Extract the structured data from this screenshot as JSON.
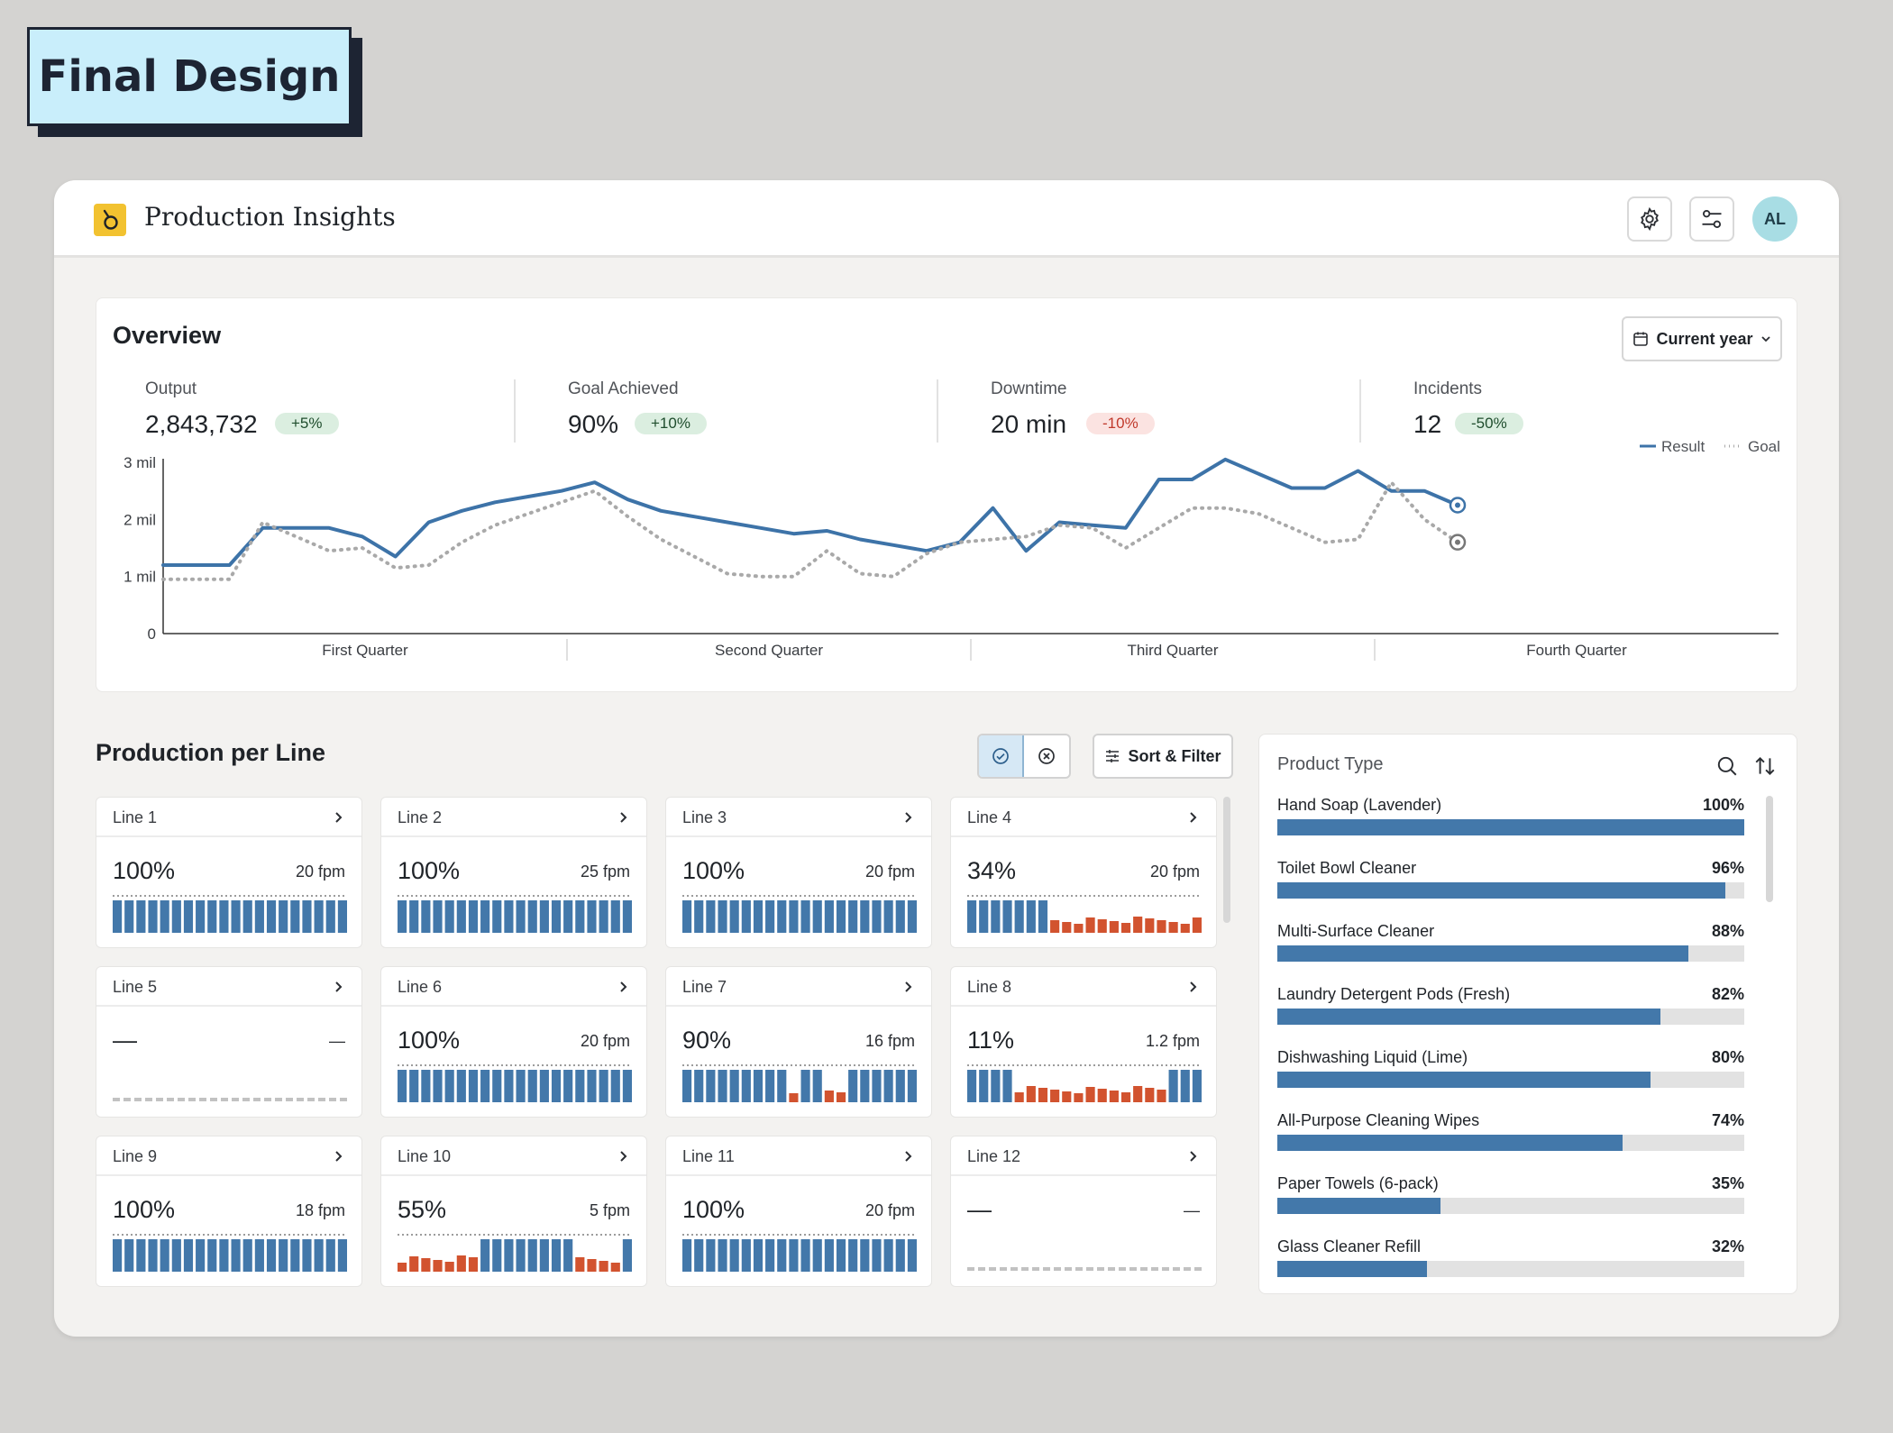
{
  "tag": {
    "label": "Final Design"
  },
  "header": {
    "title": "Production Insights",
    "avatar_initials": "AL"
  },
  "overview": {
    "title": "Overview",
    "range_label": "Current year",
    "kpis": [
      {
        "label": "Output",
        "value": "2,843,732",
        "delta": "+5%",
        "trend": "pos"
      },
      {
        "label": "Goal Achieved",
        "value": "90%",
        "delta": "+10%",
        "trend": "pos"
      },
      {
        "label": "Downtime",
        "value": "20 min",
        "delta": "-10%",
        "trend": "neg"
      },
      {
        "label": "Incidents",
        "value": "12",
        "delta": "-50%",
        "trend": "pos"
      }
    ]
  },
  "chart_data": {
    "type": "line",
    "title": "",
    "xlabel": "",
    "ylabel": "",
    "ylim": [
      0,
      3
    ],
    "yticks": [
      "0",
      "1 mil",
      "2 mil",
      "3 mil"
    ],
    "quarters": [
      "First Quarter",
      "Second Quarter",
      "Third Quarter",
      "Fourth Quarter"
    ],
    "legend_position": "top-right",
    "series": [
      {
        "name": "Result",
        "color": "#3d73a8",
        "style": "solid",
        "values": [
          1.2,
          1.2,
          1.2,
          1.85,
          1.85,
          1.85,
          1.7,
          1.35,
          1.95,
          2.15,
          2.3,
          2.4,
          2.5,
          2.65,
          2.35,
          2.15,
          2.05,
          1.95,
          1.85,
          1.75,
          1.8,
          1.65,
          1.55,
          1.45,
          1.6,
          2.2,
          1.45,
          1.95,
          1.9,
          1.85,
          2.7,
          2.7,
          3.05,
          2.8,
          2.55,
          2.55,
          2.85,
          2.5,
          2.5,
          2.25
        ]
      },
      {
        "name": "Goal",
        "color": "#a9a9a9",
        "style": "dotted",
        "values": [
          0.95,
          0.95,
          0.95,
          1.95,
          1.7,
          1.45,
          1.5,
          1.15,
          1.2,
          1.6,
          1.9,
          2.1,
          2.3,
          2.5,
          2.05,
          1.65,
          1.35,
          1.05,
          1.0,
          1.0,
          1.45,
          1.05,
          1.0,
          1.4,
          1.6,
          1.65,
          1.7,
          1.9,
          1.85,
          1.5,
          1.85,
          2.2,
          2.2,
          2.1,
          1.85,
          1.6,
          1.65,
          2.65,
          2.0,
          1.6
        ]
      }
    ]
  },
  "production": {
    "title": "Production per Line",
    "sort_label": "Sort & Filter",
    "lines": [
      {
        "name": "Line 1",
        "pct": "100%",
        "fpm": "20 fpm",
        "bars": "bbbbbbbbbbbbbbbbbbbb"
      },
      {
        "name": "Line 2",
        "pct": "100%",
        "fpm": "25 fpm",
        "bars": "bbbbbbbbbbbbbbbbbbbb"
      },
      {
        "name": "Line 3",
        "pct": "100%",
        "fpm": "20 fpm",
        "bars": "bbbbbbbbbbbbbbbbbbbb"
      },
      {
        "name": "Line 4",
        "pct": "34%",
        "fpm": "20 fpm",
        "bars": "bbbbbbbrrrrrrrrrrrrr"
      },
      {
        "name": "Line 5",
        "pct": "—",
        "fpm": "—",
        "bars": ""
      },
      {
        "name": "Line 6",
        "pct": "100%",
        "fpm": "20 fpm",
        "bars": "bbbbbbbbbbbbbbbbbbbb"
      },
      {
        "name": "Line 7",
        "pct": "90%",
        "fpm": "16 fpm",
        "bars": "bbbbbbbbbrbbrrbbbbbb"
      },
      {
        "name": "Line 8",
        "pct": "11%",
        "fpm": "1.2 fpm",
        "bars": "bbbbrrrrrrrrrrrrrbbb"
      },
      {
        "name": "Line 9",
        "pct": "100%",
        "fpm": "18 fpm",
        "bars": "bbbbbbbbbbbbbbbbbbbb"
      },
      {
        "name": "Line 10",
        "pct": "55%",
        "fpm": "5 fpm",
        "bars": "rrrrrrrbbbbbbbbrrrrb"
      },
      {
        "name": "Line 11",
        "pct": "100%",
        "fpm": "20 fpm",
        "bars": "bbbbbbbbbbbbbbbbbbbb"
      },
      {
        "name": "Line 12",
        "pct": "—",
        "fpm": "—",
        "bars": ""
      }
    ]
  },
  "product_type": {
    "title": "Product Type",
    "items": [
      {
        "name": "Hand Soap (Lavender)",
        "pct": "100%",
        "value": 100
      },
      {
        "name": "Toilet Bowl Cleaner",
        "pct": "96%",
        "value": 96
      },
      {
        "name": "Multi-Surface Cleaner",
        "pct": "88%",
        "value": 88
      },
      {
        "name": "Laundry Detergent Pods (Fresh)",
        "pct": "82%",
        "value": 82
      },
      {
        "name": "Dishwashing Liquid (Lime)",
        "pct": "80%",
        "value": 80
      },
      {
        "name": "All-Purpose Cleaning Wipes",
        "pct": "74%",
        "value": 74
      },
      {
        "name": "Paper Towels (6-pack)",
        "pct": "35%",
        "value": 35
      },
      {
        "name": "Glass Cleaner Refill",
        "pct": "32%",
        "value": 32
      }
    ]
  },
  "colors": {
    "accent": "#4378aa",
    "alert": "#d2532f",
    "logo": "#f2c230"
  }
}
